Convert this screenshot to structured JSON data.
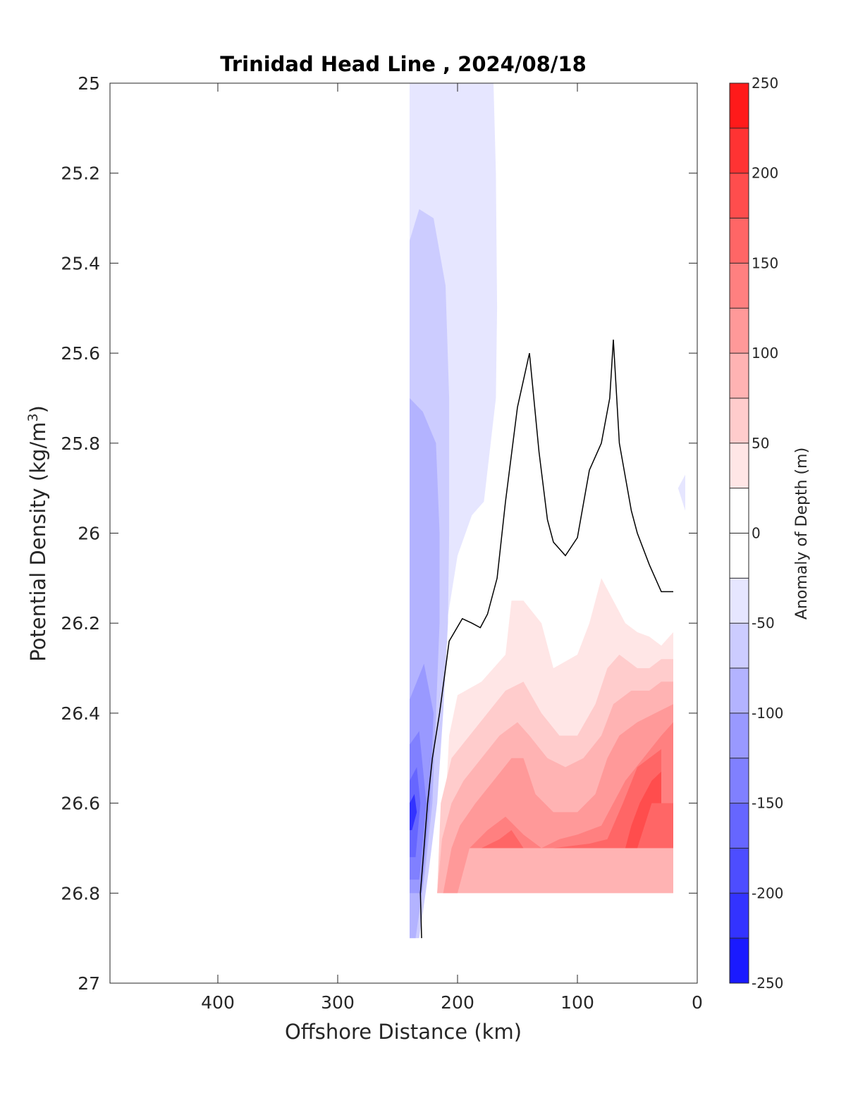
{
  "chart_data": {
    "type": "contour",
    "title": "Trinidad Head Line , 2024/08/18",
    "xlabel": "Offshore Distance (km)",
    "ylabel_main": "Potential Density (kg/m",
    "ylabel_sup": "3",
    "ylabel_tail": ")",
    "xlim": [
      490,
      0
    ],
    "ylim": [
      25,
      27
    ],
    "xticks": [
      400,
      300,
      200,
      100,
      0
    ],
    "xtick_labels": [
      "400",
      "300",
      "200",
      "100",
      "0"
    ],
    "yticks": [
      25,
      25.2,
      25.4,
      25.6,
      25.8,
      26,
      26.2,
      26.4,
      26.6,
      26.8,
      27
    ],
    "ytick_labels": [
      "25",
      "25.2",
      "25.4",
      "25.6",
      "25.8",
      "26",
      "26.2",
      "26.4",
      "26.6",
      "26.8",
      "27"
    ],
    "colorbar": {
      "label": "Anomaly of Depth (m)",
      "range": [
        -250,
        250
      ],
      "levels": [
        -250,
        -225,
        -200,
        -175,
        -150,
        -125,
        -100,
        -75,
        -50,
        -25,
        0,
        25,
        50,
        75,
        100,
        125,
        150,
        175,
        200,
        225,
        250
      ],
      "ticks": [
        250,
        200,
        150,
        100,
        50,
        0,
        -50,
        -100,
        -150,
        -200,
        -250
      ],
      "tick_labels": [
        "250",
        "200",
        "150",
        "100",
        "50",
        "0",
        "-50",
        "-100",
        "-150",
        "-200",
        "-250"
      ],
      "colors": [
        "#0000ff",
        "#1a1aff",
        "#3333ff",
        "#4d4dff",
        "#6666ff",
        "#8080ff",
        "#9999ff",
        "#b3b3ff",
        "#ccccff",
        "#e6e6ff",
        "#ffffff",
        "#ffffff",
        "#ffe6e6",
        "#ffcccc",
        "#ffb3b3",
        "#ff9999",
        "#ff8080",
        "#ff6666",
        "#ff4d4d",
        "#ff3333",
        "#ff1a1a",
        "#ff0000"
      ]
    },
    "regions": [
      {
        "name": "anomaly -25 to -50",
        "level": -37.5,
        "color": "#e6e6ff",
        "points": [
          [
            240,
            25
          ],
          [
            170,
            25
          ],
          [
            168,
            25.2
          ],
          [
            167,
            25.5
          ],
          [
            168,
            25.7
          ],
          [
            178,
            25.93
          ],
          [
            188,
            25.96
          ],
          [
            200,
            26.05
          ],
          [
            209,
            26.2
          ],
          [
            213,
            26.4
          ],
          [
            218,
            26.6
          ],
          [
            226,
            26.75
          ],
          [
            233,
            26.9
          ],
          [
            240,
            26.9
          ]
        ]
      },
      {
        "name": "anomaly -50 to -75",
        "level": -62.5,
        "color": "#ccccff",
        "points": [
          [
            240,
            25.35
          ],
          [
            232,
            25.28
          ],
          [
            220,
            25.3
          ],
          [
            210,
            25.45
          ],
          [
            207,
            25.7
          ],
          [
            207,
            26
          ],
          [
            208,
            26.2
          ],
          [
            212,
            26.4
          ],
          [
            217,
            26.6
          ],
          [
            224,
            26.75
          ],
          [
            232,
            26.9
          ],
          [
            240,
            26.9
          ]
        ]
      },
      {
        "name": "anomaly -75 to -100",
        "level": -87.5,
        "color": "#b3b3ff",
        "points": [
          [
            240,
            25.7
          ],
          [
            229,
            25.73
          ],
          [
            218,
            25.8
          ],
          [
            215,
            26
          ],
          [
            215,
            26.2
          ],
          [
            218,
            26.4
          ],
          [
            221,
            26.6
          ],
          [
            227,
            26.75
          ],
          [
            235,
            26.9
          ],
          [
            240,
            26.9
          ]
        ]
      },
      {
        "name": "anomaly -100 to -125",
        "level": -112.5,
        "color": "#9999ff",
        "points": [
          [
            240,
            26.37
          ],
          [
            228,
            26.29
          ],
          [
            220,
            26.4
          ],
          [
            223,
            26.6
          ],
          [
            230,
            26.8
          ],
          [
            240,
            26.8
          ]
        ]
      },
      {
        "name": "anomaly -125 to -150",
        "level": -137.5,
        "color": "#8080ff",
        "points": [
          [
            240,
            26.47
          ],
          [
            232,
            26.44
          ],
          [
            226,
            26.6
          ],
          [
            232,
            26.77
          ],
          [
            240,
            26.77
          ]
        ]
      },
      {
        "name": "anomaly -150 to -175",
        "level": -162.5,
        "color": "#6666ff",
        "points": [
          [
            240,
            26.55
          ],
          [
            234,
            26.52
          ],
          [
            231,
            26.6
          ],
          [
            235,
            26.72
          ],
          [
            240,
            26.72
          ]
        ]
      },
      {
        "name": "anomaly -175 to -200",
        "level": -187.5,
        "color": "#3333ff",
        "points": [
          [
            240,
            26.6
          ],
          [
            236,
            26.58
          ],
          [
            234,
            26.62
          ],
          [
            238,
            26.66
          ],
          [
            240,
            26.66
          ]
        ]
      },
      {
        "name": "anomaly -25 to -50 coastal",
        "level": -37.5,
        "color": "#e6e6ff",
        "points": [
          [
            10,
            25.87
          ],
          [
            16,
            25.9
          ],
          [
            10,
            25.95
          ]
        ]
      },
      {
        "name": "anomaly 25 to 50",
        "level": 37.5,
        "color": "#ffe6e6",
        "points": [
          [
            217,
            26.8
          ],
          [
            210,
            26.6
          ],
          [
            207,
            26.45
          ],
          [
            200,
            26.36
          ],
          [
            180,
            26.33
          ],
          [
            160,
            26.27
          ],
          [
            155,
            26.15
          ],
          [
            145,
            26.15
          ],
          [
            130,
            26.2
          ],
          [
            120,
            26.3
          ],
          [
            100,
            26.27
          ],
          [
            90,
            26.2
          ],
          [
            80,
            26.1
          ],
          [
            70,
            26.15
          ],
          [
            60,
            26.2
          ],
          [
            50,
            26.22
          ],
          [
            40,
            26.23
          ],
          [
            30,
            26.25
          ],
          [
            20,
            26.22
          ],
          [
            20,
            26.8
          ]
        ]
      },
      {
        "name": "anomaly 50 to 75",
        "level": 62.5,
        "color": "#ffcccc",
        "points": [
          [
            217,
            26.8
          ],
          [
            214,
            26.6
          ],
          [
            205,
            26.5
          ],
          [
            190,
            26.45
          ],
          [
            175,
            26.4
          ],
          [
            160,
            26.35
          ],
          [
            145,
            26.33
          ],
          [
            130,
            26.4
          ],
          [
            115,
            26.45
          ],
          [
            100,
            26.45
          ],
          [
            85,
            26.38
          ],
          [
            75,
            26.3
          ],
          [
            65,
            26.27
          ],
          [
            50,
            26.3
          ],
          [
            40,
            26.3
          ],
          [
            30,
            26.28
          ],
          [
            20,
            26.28
          ],
          [
            20,
            26.8
          ]
        ]
      },
      {
        "name": "anomaly 75 to 100",
        "level": 87.5,
        "color": "#ffb3b3",
        "points": [
          [
            217,
            26.8
          ],
          [
            213,
            26.68
          ],
          [
            205,
            26.6
          ],
          [
            195,
            26.55
          ],
          [
            180,
            26.5
          ],
          [
            165,
            26.45
          ],
          [
            150,
            26.42
          ],
          [
            140,
            26.45
          ],
          [
            125,
            26.5
          ],
          [
            110,
            26.52
          ],
          [
            95,
            26.5
          ],
          [
            80,
            26.45
          ],
          [
            70,
            26.38
          ],
          [
            55,
            26.35
          ],
          [
            40,
            26.35
          ],
          [
            30,
            26.33
          ],
          [
            20,
            26.33
          ],
          [
            20,
            26.8
          ]
        ]
      },
      {
        "name": "anomaly 100 to 125",
        "level": 112.5,
        "color": "#ff9999",
        "points": [
          [
            212,
            26.8
          ],
          [
            205,
            26.7
          ],
          [
            198,
            26.65
          ],
          [
            185,
            26.6
          ],
          [
            170,
            26.55
          ],
          [
            155,
            26.5
          ],
          [
            145,
            26.5
          ],
          [
            135,
            26.58
          ],
          [
            120,
            26.62
          ],
          [
            100,
            26.62
          ],
          [
            85,
            26.58
          ],
          [
            75,
            26.5
          ],
          [
            65,
            26.45
          ],
          [
            50,
            26.42
          ],
          [
            35,
            26.4
          ],
          [
            20,
            26.38
          ],
          [
            20,
            26.7
          ],
          [
            190,
            26.7
          ],
          [
            200,
            26.8
          ]
        ]
      },
      {
        "name": "anomaly 125 to 150",
        "level": 137.5,
        "color": "#ff8080",
        "points": [
          [
            190,
            26.7
          ],
          [
            175,
            26.66
          ],
          [
            160,
            26.63
          ],
          [
            145,
            26.67
          ],
          [
            130,
            26.7
          ],
          [
            115,
            26.68
          ],
          [
            100,
            26.67
          ],
          [
            80,
            26.65
          ],
          [
            70,
            26.6
          ],
          [
            60,
            26.55
          ],
          [
            45,
            26.5
          ],
          [
            30,
            26.45
          ],
          [
            20,
            26.42
          ],
          [
            20,
            26.7
          ]
        ]
      },
      {
        "name": "anomaly 150 to 175",
        "level": 162.5,
        "color": "#ff6666",
        "points": [
          [
            180,
            26.7
          ],
          [
            165,
            26.68
          ],
          [
            155,
            26.66
          ],
          [
            145,
            26.7
          ],
          [
            120,
            26.7
          ],
          [
            90,
            26.69
          ],
          [
            75,
            26.68
          ],
          [
            62,
            26.6
          ],
          [
            50,
            26.52
          ],
          [
            40,
            26.5
          ],
          [
            30,
            26.48
          ],
          [
            30,
            26.6
          ],
          [
            20,
            26.6
          ],
          [
            20,
            26.7
          ]
        ]
      },
      {
        "name": "anomaly 175 to 200",
        "level": 187.5,
        "color": "#ff4d4d",
        "points": [
          [
            60,
            26.7
          ],
          [
            55,
            26.65
          ],
          [
            48,
            26.6
          ],
          [
            38,
            26.55
          ],
          [
            30,
            26.53
          ],
          [
            30,
            26.6
          ],
          [
            38,
            26.6
          ],
          [
            50,
            26.7
          ]
        ]
      }
    ],
    "zero_contour": [
      [
        230,
        26.9
      ],
      [
        231,
        26.8
      ],
      [
        228,
        26.7
      ],
      [
        225,
        26.6
      ],
      [
        221,
        26.5
      ],
      [
        215,
        26.4
      ],
      [
        210,
        26.3
      ],
      [
        207,
        26.24
      ],
      [
        196,
        26.19
      ],
      [
        188,
        26.2
      ],
      [
        181,
        26.21
      ],
      [
        175,
        26.18
      ],
      [
        167,
        26.1
      ],
      [
        160,
        25.93
      ],
      [
        150,
        25.72
      ],
      [
        140,
        25.6
      ],
      [
        132,
        25.82
      ],
      [
        125,
        25.97
      ],
      [
        120,
        26.02
      ],
      [
        110,
        26.05
      ],
      [
        100,
        26.01
      ],
      [
        90,
        25.86
      ],
      [
        80,
        25.8
      ],
      [
        73,
        25.7
      ],
      [
        70,
        25.57
      ],
      [
        65,
        25.8
      ],
      [
        55,
        25.95
      ],
      [
        50,
        26
      ],
      [
        40,
        26.07
      ],
      [
        30,
        26.13
      ],
      [
        20,
        26.13
      ]
    ]
  }
}
